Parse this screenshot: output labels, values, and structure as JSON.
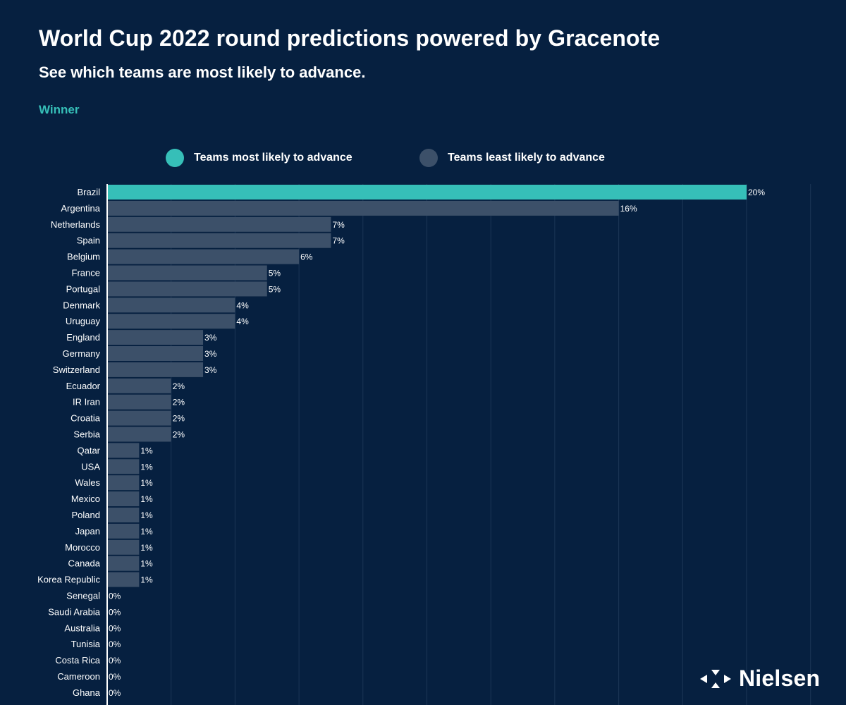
{
  "header": {
    "title": "World Cup 2022 round predictions powered by Gracenote",
    "subtitle": "See which teams are most likely to advance.",
    "tab": "Winner"
  },
  "legend": {
    "most": {
      "label": "Teams most likely to advance",
      "color": "#36bfb8"
    },
    "least": {
      "label": "Teams least likely to advance",
      "color": "#3c5069"
    }
  },
  "logo": {
    "text": "Nielsen"
  },
  "chart_data": {
    "type": "bar",
    "orientation": "horizontal",
    "title": "World Cup 2022 round predictions powered by Gracenote",
    "subtitle": "See which teams are most likely to advance.",
    "xlabel": "",
    "ylabel": "",
    "xlim": [
      0,
      22
    ],
    "grid": true,
    "categories": [
      "Brazil",
      "Argentina",
      "Netherlands",
      "Spain",
      "Belgium",
      "France",
      "Portugal",
      "Denmark",
      "Uruguay",
      "England",
      "Germany",
      "Switzerland",
      "Ecuador",
      "IR Iran",
      "Croatia",
      "Serbia",
      "Qatar",
      "USA",
      "Wales",
      "Mexico",
      "Poland",
      "Japan",
      "Morocco",
      "Canada",
      "Korea Republic",
      "Senegal",
      "Saudi Arabia",
      "Australia",
      "Tunisia",
      "Costa Rica",
      "Cameroon",
      "Ghana"
    ],
    "values": [
      20,
      16,
      7,
      7,
      6,
      5,
      5,
      4,
      4,
      3,
      3,
      3,
      2,
      2,
      2,
      2,
      1,
      1,
      1,
      1,
      1,
      1,
      1,
      1,
      1,
      0,
      0,
      0,
      0,
      0,
      0,
      0
    ],
    "value_labels": [
      "20%",
      "16%",
      "7%",
      "7%",
      "6%",
      "5%",
      "5%",
      "4%",
      "4%",
      "3%",
      "3%",
      "3%",
      "2%",
      "2%",
      "2%",
      "2%",
      "1%",
      "1%",
      "1%",
      "1%",
      "1%",
      "1%",
      "1%",
      "1%",
      "1%",
      "0%",
      "0%",
      "0%",
      "0%",
      "0%",
      "0%",
      "0%"
    ],
    "highlight": [
      "Brazil"
    ],
    "colors": {
      "highlight": "#36bfb8",
      "default": "#3c5069",
      "grid": "#1c3656",
      "axis": "#ffffff"
    }
  }
}
